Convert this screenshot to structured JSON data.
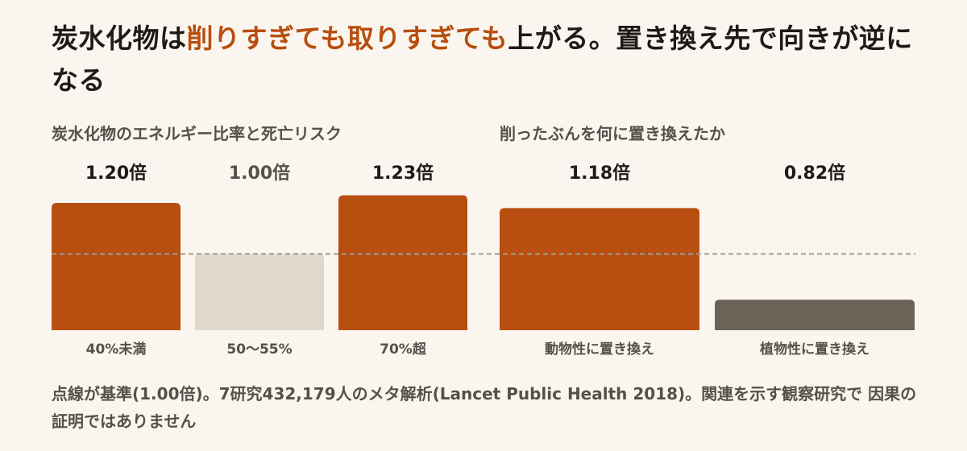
{
  "title": {
    "part1": "炭水化物は",
    "highlight": "削りすぎても取りすぎても",
    "part2": "上がる。置き換え先で向きが逆になる"
  },
  "colors": {
    "accent": "#b84e10",
    "neutral": "#e0d8cb",
    "plant": "#6b6258",
    "baseline": "#a39c94",
    "value_dark": "#1f1a17",
    "value_muted": "#57504a"
  },
  "chart_data": [
    {
      "type": "bar",
      "title": "炭水化物のエネルギー比率と死亡リスク",
      "categories": [
        "40%未満",
        "50〜55%",
        "70%超"
      ],
      "values": [
        1.2,
        1.0,
        1.23
      ],
      "value_labels": [
        "1.20倍",
        "1.00倍",
        "1.23倍"
      ],
      "bar_colors": [
        "#b84e10",
        "#e0d8cb",
        "#b84e10"
      ],
      "label_colors": [
        "#1f1a17",
        "#57504a",
        "#1f1a17"
      ],
      "baseline": 1.0,
      "ylim": [
        0.7,
        1.3
      ]
    },
    {
      "type": "bar",
      "title": "削ったぶんを何に置き換えたか",
      "categories": [
        "動物性に置き換え",
        "植物性に置き換え"
      ],
      "values": [
        1.18,
        0.82
      ],
      "value_labels": [
        "1.18倍",
        "0.82倍"
      ],
      "bar_colors": [
        "#b84e10",
        "#6b6258"
      ],
      "label_colors": [
        "#1f1a17",
        "#1f1a17"
      ],
      "baseline": 1.0,
      "ylim": [
        0.7,
        1.3
      ]
    }
  ],
  "note": "点線が基準(1.00倍)。7研究432,179人のメタ解析(Lancet Public Health 2018)。関連を示す観察研究で 因果の証明ではありません"
}
